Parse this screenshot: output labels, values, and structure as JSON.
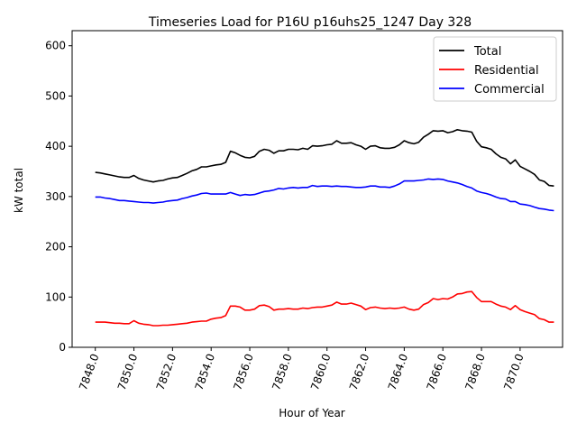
{
  "chart_data": {
    "type": "line",
    "title": "Timeseries Load for P16U p16uhs25_1247  Day 328",
    "xlabel": "Hour of Year",
    "ylabel": "kW total",
    "xlim": [
      7846.8,
      7872.2
    ],
    "ylim": [
      0,
      630
    ],
    "grid": false,
    "legend_position": "top-right",
    "xticks": [
      7848,
      7850,
      7852,
      7854,
      7856,
      7858,
      7860,
      7862,
      7864,
      7866,
      7868,
      7870
    ],
    "xtick_labels": [
      "7848.0",
      "7850.0",
      "7852.0",
      "7854.0",
      "7856.0",
      "7858.0",
      "7860.0",
      "7862.0",
      "7864.0",
      "7866.0",
      "7868.0",
      "7870.0"
    ],
    "yticks": [
      0,
      100,
      200,
      300,
      400,
      500,
      600
    ],
    "ytick_labels": [
      "0",
      "100",
      "200",
      "300",
      "400",
      "500",
      "600"
    ],
    "x": [
      7848.0,
      7848.25,
      7848.5,
      7848.75,
      7849.0,
      7849.25,
      7849.5,
      7849.75,
      7850.0,
      7850.25,
      7850.5,
      7850.75,
      7851.0,
      7851.25,
      7851.5,
      7851.75,
      7852.0,
      7852.25,
      7852.5,
      7852.75,
      7853.0,
      7853.25,
      7853.5,
      7853.75,
      7854.0,
      7854.25,
      7854.5,
      7854.75,
      7855.0,
      7855.25,
      7855.5,
      7855.75,
      7856.0,
      7856.25,
      7856.5,
      7856.75,
      7857.0,
      7857.25,
      7857.5,
      7857.75,
      7858.0,
      7858.25,
      7858.5,
      7858.75,
      7859.0,
      7859.25,
      7859.5,
      7859.75,
      7860.0,
      7860.25,
      7860.5,
      7860.75,
      7861.0,
      7861.25,
      7861.5,
      7861.75,
      7862.0,
      7862.25,
      7862.5,
      7862.75,
      7863.0,
      7863.25,
      7863.5,
      7863.75,
      7864.0,
      7864.25,
      7864.5,
      7864.75,
      7865.0,
      7865.25,
      7865.5,
      7865.75,
      7866.0,
      7866.25,
      7866.5,
      7866.75,
      7867.0,
      7867.25,
      7867.5,
      7867.75,
      7868.0,
      7868.25,
      7868.5,
      7868.75,
      7869.0,
      7869.25,
      7869.5,
      7869.75,
      7870.0,
      7870.25,
      7870.5,
      7870.75,
      7871.0,
      7871.25,
      7871.5,
      7871.75
    ],
    "series": [
      {
        "name": "Total",
        "color": "#000000",
        "values": [
          348,
          347,
          345,
          343,
          341,
          339,
          338,
          338,
          342,
          336,
          333,
          331,
          329,
          331,
          332,
          335,
          337,
          338,
          342,
          346,
          351,
          354,
          359,
          359,
          361,
          363,
          364,
          368,
          390,
          387,
          382,
          378,
          377,
          380,
          390,
          394,
          392,
          386,
          391,
          391,
          394,
          394,
          393,
          396,
          394,
          401,
          400,
          401,
          403,
          404,
          411,
          406,
          406,
          407,
          403,
          400,
          394,
          400,
          401,
          397,
          396,
          396,
          398,
          403,
          411,
          407,
          405,
          408,
          418,
          424,
          431,
          430,
          431,
          427,
          429,
          433,
          431,
          430,
          428,
          410,
          399,
          397,
          394,
          385,
          378,
          375,
          365,
          373,
          360,
          355,
          350,
          344,
          333,
          330,
          322,
          321
        ]
      },
      {
        "name": "Residential",
        "color": "#ff0000",
        "values": [
          50,
          50,
          50,
          49,
          48,
          48,
          47,
          47,
          53,
          48,
          46,
          45,
          43,
          43,
          44,
          44,
          45,
          46,
          47,
          48,
          50,
          51,
          52,
          52,
          56,
          58,
          59,
          63,
          82,
          82,
          80,
          74,
          74,
          76,
          83,
          84,
          81,
          74,
          76,
          76,
          77,
          76,
          76,
          78,
          77,
          79,
          80,
          80,
          82,
          84,
          90,
          86,
          86,
          88,
          85,
          82,
          75,
          79,
          80,
          78,
          77,
          78,
          77,
          78,
          80,
          76,
          74,
          76,
          85,
          89,
          97,
          95,
          97,
          96,
          100,
          106,
          107,
          110,
          111,
          99,
          91,
          91,
          91,
          86,
          82,
          80,
          75,
          83,
          75,
          71,
          68,
          65,
          57,
          55,
          50,
          50
        ]
      },
      {
        "name": "Commercial",
        "color": "#0000ff",
        "values": [
          299,
          299,
          297,
          296,
          294,
          292,
          292,
          291,
          290,
          289,
          288,
          288,
          287,
          288,
          289,
          291,
          292,
          293,
          296,
          298,
          301,
          303,
          306,
          307,
          305,
          305,
          305,
          305,
          308,
          305,
          302,
          304,
          303,
          304,
          307,
          310,
          311,
          313,
          316,
          315,
          317,
          318,
          317,
          318,
          318,
          322,
          320,
          321,
          321,
          320,
          321,
          320,
          320,
          319,
          318,
          318,
          319,
          321,
          321,
          319,
          319,
          318,
          321,
          325,
          331,
          331,
          331,
          332,
          333,
          335,
          334,
          335,
          334,
          331,
          329,
          327,
          324,
          320,
          317,
          311,
          308,
          306,
          303,
          299,
          296,
          295,
          290,
          290,
          285,
          284,
          282,
          279,
          276,
          275,
          273,
          272
        ]
      }
    ]
  }
}
